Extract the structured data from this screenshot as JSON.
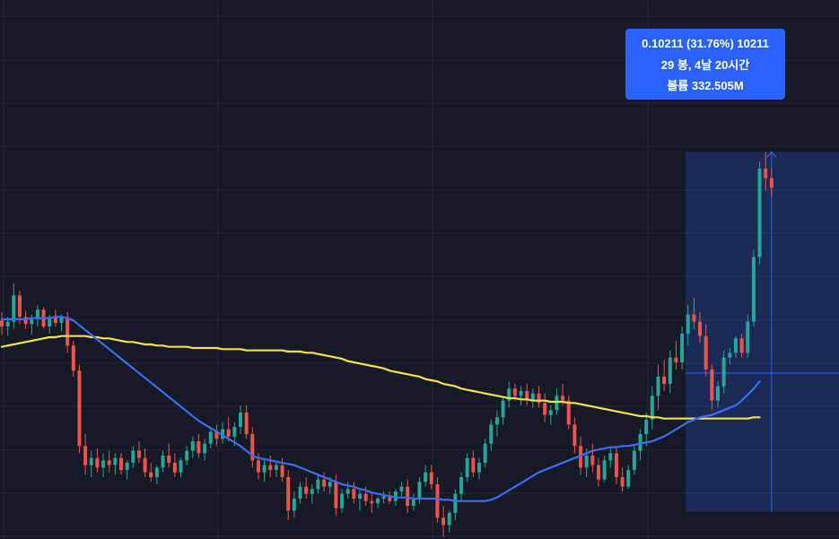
{
  "chart_data": {
    "type": "candlestick",
    "grid": true,
    "colors": {
      "background": "#161a25",
      "grid": "#232836",
      "up": "#26a69a",
      "down": "#ef5350",
      "ma_fast": "#3b6cf6",
      "ma_slow": "#f5e04d",
      "measure_fill": "#2962ff",
      "measure_line": "#2962ff"
    },
    "ylim": [
      0.215,
      0.545
    ],
    "candles": [
      [
        0.367,
        0.374,
        0.355,
        0.362
      ],
      [
        0.362,
        0.37,
        0.354,
        0.366
      ],
      [
        0.366,
        0.398,
        0.36,
        0.388
      ],
      [
        0.388,
        0.392,
        0.364,
        0.37
      ],
      [
        0.37,
        0.375,
        0.36,
        0.364
      ],
      [
        0.364,
        0.372,
        0.355,
        0.368
      ],
      [
        0.368,
        0.38,
        0.362,
        0.376
      ],
      [
        0.376,
        0.378,
        0.36,
        0.362
      ],
      [
        0.362,
        0.372,
        0.356,
        0.37
      ],
      [
        0.37,
        0.376,
        0.362,
        0.365
      ],
      [
        0.365,
        0.372,
        0.358,
        0.37
      ],
      [
        0.37,
        0.374,
        0.34,
        0.346
      ],
      [
        0.346,
        0.35,
        0.32,
        0.325
      ],
      [
        0.325,
        0.33,
        0.256,
        0.262
      ],
      [
        0.262,
        0.272,
        0.238,
        0.246
      ],
      [
        0.246,
        0.258,
        0.236,
        0.252
      ],
      [
        0.252,
        0.26,
        0.24,
        0.244
      ],
      [
        0.244,
        0.256,
        0.236,
        0.25
      ],
      [
        0.25,
        0.258,
        0.24,
        0.246
      ],
      [
        0.246,
        0.256,
        0.238,
        0.252
      ],
      [
        0.252,
        0.256,
        0.238,
        0.242
      ],
      [
        0.242,
        0.25,
        0.234,
        0.248
      ],
      [
        0.248,
        0.262,
        0.244,
        0.258
      ],
      [
        0.258,
        0.266,
        0.248,
        0.252
      ],
      [
        0.252,
        0.26,
        0.236,
        0.24
      ],
      [
        0.24,
        0.248,
        0.232,
        0.236
      ],
      [
        0.236,
        0.246,
        0.23,
        0.244
      ],
      [
        0.244,
        0.258,
        0.24,
        0.254
      ],
      [
        0.254,
        0.264,
        0.244,
        0.248
      ],
      [
        0.248,
        0.256,
        0.236,
        0.24
      ],
      [
        0.24,
        0.252,
        0.236,
        0.25
      ],
      [
        0.25,
        0.262,
        0.246,
        0.258
      ],
      [
        0.258,
        0.27,
        0.252,
        0.266
      ],
      [
        0.266,
        0.272,
        0.252,
        0.256
      ],
      [
        0.256,
        0.268,
        0.25,
        0.264
      ],
      [
        0.264,
        0.278,
        0.26,
        0.274
      ],
      [
        0.274,
        0.28,
        0.262,
        0.268
      ],
      [
        0.268,
        0.282,
        0.264,
        0.276
      ],
      [
        0.276,
        0.286,
        0.266,
        0.27
      ],
      [
        0.27,
        0.282,
        0.262,
        0.278
      ],
      [
        0.278,
        0.296,
        0.272,
        0.29
      ],
      [
        0.29,
        0.296,
        0.268,
        0.272
      ],
      [
        0.272,
        0.278,
        0.244,
        0.25
      ],
      [
        0.25,
        0.256,
        0.234,
        0.24
      ],
      [
        0.24,
        0.25,
        0.232,
        0.246
      ],
      [
        0.246,
        0.254,
        0.236,
        0.242
      ],
      [
        0.242,
        0.25,
        0.236,
        0.246
      ],
      [
        0.246,
        0.252,
        0.232,
        0.236
      ],
      [
        0.236,
        0.242,
        0.2,
        0.208
      ],
      [
        0.208,
        0.224,
        0.202,
        0.218
      ],
      [
        0.218,
        0.232,
        0.214,
        0.228
      ],
      [
        0.228,
        0.236,
        0.218,
        0.222
      ],
      [
        0.222,
        0.23,
        0.214,
        0.226
      ],
      [
        0.226,
        0.238,
        0.222,
        0.234
      ],
      [
        0.234,
        0.24,
        0.224,
        0.228
      ],
      [
        0.228,
        0.236,
        0.222,
        0.232
      ],
      [
        0.232,
        0.238,
        0.204,
        0.21
      ],
      [
        0.21,
        0.226,
        0.206,
        0.222
      ],
      [
        0.222,
        0.232,
        0.218,
        0.226
      ],
      [
        0.226,
        0.232,
        0.214,
        0.218
      ],
      [
        0.218,
        0.226,
        0.208,
        0.222
      ],
      [
        0.222,
        0.228,
        0.212,
        0.216
      ],
      [
        0.216,
        0.222,
        0.206,
        0.214
      ],
      [
        0.214,
        0.22,
        0.21,
        0.218
      ],
      [
        0.218,
        0.224,
        0.214,
        0.22
      ],
      [
        0.22,
        0.224,
        0.214,
        0.216
      ],
      [
        0.216,
        0.226,
        0.212,
        0.224
      ],
      [
        0.224,
        0.232,
        0.22,
        0.228
      ],
      [
        0.228,
        0.234,
        0.206,
        0.212
      ],
      [
        0.212,
        0.222,
        0.208,
        0.218
      ],
      [
        0.218,
        0.236,
        0.214,
        0.232
      ],
      [
        0.232,
        0.246,
        0.228,
        0.24
      ],
      [
        0.24,
        0.246,
        0.226,
        0.23
      ],
      [
        0.23,
        0.236,
        0.198,
        0.202
      ],
      [
        0.202,
        0.212,
        0.186,
        0.196
      ],
      [
        0.196,
        0.208,
        0.19,
        0.206
      ],
      [
        0.206,
        0.226,
        0.2,
        0.222
      ],
      [
        0.222,
        0.24,
        0.216,
        0.236
      ],
      [
        0.236,
        0.256,
        0.232,
        0.252
      ],
      [
        0.252,
        0.258,
        0.236,
        0.24
      ],
      [
        0.24,
        0.252,
        0.234,
        0.248
      ],
      [
        0.248,
        0.268,
        0.244,
        0.264
      ],
      [
        0.264,
        0.284,
        0.258,
        0.28
      ],
      [
        0.28,
        0.292,
        0.27,
        0.286
      ],
      [
        0.286,
        0.304,
        0.28,
        0.3
      ],
      [
        0.3,
        0.316,
        0.294,
        0.31
      ],
      [
        0.31,
        0.314,
        0.3,
        0.304
      ],
      [
        0.304,
        0.312,
        0.296,
        0.308
      ],
      [
        0.308,
        0.314,
        0.296,
        0.3
      ],
      [
        0.3,
        0.31,
        0.294,
        0.306
      ],
      [
        0.306,
        0.312,
        0.294,
        0.298
      ],
      [
        0.298,
        0.306,
        0.282,
        0.288
      ],
      [
        0.288,
        0.296,
        0.28,
        0.292
      ],
      [
        0.292,
        0.31,
        0.288,
        0.304
      ],
      [
        0.304,
        0.314,
        0.296,
        0.3
      ],
      [
        0.3,
        0.304,
        0.276,
        0.28
      ],
      [
        0.28,
        0.286,
        0.256,
        0.262
      ],
      [
        0.262,
        0.27,
        0.238,
        0.244
      ],
      [
        0.244,
        0.26,
        0.236,
        0.254
      ],
      [
        0.254,
        0.264,
        0.24,
        0.246
      ],
      [
        0.246,
        0.252,
        0.228,
        0.234
      ],
      [
        0.234,
        0.254,
        0.232,
        0.25
      ],
      [
        0.25,
        0.262,
        0.244,
        0.256
      ],
      [
        0.256,
        0.262,
        0.23,
        0.236
      ],
      [
        0.236,
        0.244,
        0.224,
        0.228
      ],
      [
        0.228,
        0.246,
        0.226,
        0.242
      ],
      [
        0.242,
        0.262,
        0.238,
        0.258
      ],
      [
        0.258,
        0.276,
        0.25,
        0.272
      ],
      [
        0.272,
        0.29,
        0.262,
        0.284
      ],
      [
        0.284,
        0.312,
        0.276,
        0.304
      ],
      [
        0.304,
        0.33,
        0.292,
        0.32
      ],
      [
        0.32,
        0.334,
        0.308,
        0.314
      ],
      [
        0.314,
        0.342,
        0.306,
        0.336
      ],
      [
        0.336,
        0.35,
        0.326,
        0.332
      ],
      [
        0.332,
        0.362,
        0.326,
        0.356
      ],
      [
        0.356,
        0.38,
        0.346,
        0.372
      ],
      [
        0.372,
        0.386,
        0.36,
        0.366
      ],
      [
        0.366,
        0.374,
        0.348,
        0.354
      ],
      [
        0.354,
        0.364,
        0.32,
        0.326
      ],
      [
        0.326,
        0.33,
        0.292,
        0.3
      ],
      [
        0.3,
        0.316,
        0.294,
        0.312
      ],
      [
        0.312,
        0.342,
        0.306,
        0.336
      ],
      [
        0.336,
        0.344,
        0.33,
        0.34
      ],
      [
        0.34,
        0.354,
        0.336,
        0.352
      ],
      [
        0.352,
        0.356,
        0.336,
        0.34
      ],
      [
        0.34,
        0.372,
        0.336,
        0.366
      ],
      [
        0.366,
        0.426,
        0.362,
        0.42
      ],
      [
        0.42,
        0.5,
        0.414,
        0.494
      ],
      [
        0.494,
        0.508,
        0.476,
        0.486
      ],
      [
        0.486,
        0.494,
        0.47,
        0.478
      ]
    ],
    "ma_fast": [
      0.368,
      0.368,
      0.368,
      0.368,
      0.368,
      0.369,
      0.369,
      0.369,
      0.369,
      0.37,
      0.37,
      0.369,
      0.367,
      0.363,
      0.359,
      0.355,
      0.351,
      0.347,
      0.343,
      0.339,
      0.335,
      0.331,
      0.327,
      0.323,
      0.319,
      0.315,
      0.311,
      0.307,
      0.303,
      0.299,
      0.295,
      0.291,
      0.287,
      0.283,
      0.28,
      0.277,
      0.274,
      0.271,
      0.268,
      0.265,
      0.262,
      0.258,
      0.254,
      0.252,
      0.251,
      0.25,
      0.249,
      0.248,
      0.247,
      0.246,
      0.244,
      0.242,
      0.24,
      0.238,
      0.236,
      0.234,
      0.232,
      0.23,
      0.229,
      0.228,
      0.226,
      0.225,
      0.223,
      0.222,
      0.221,
      0.22,
      0.219,
      0.219,
      0.219,
      0.218,
      0.218,
      0.218,
      0.218,
      0.218,
      0.217,
      0.217,
      0.216,
      0.216,
      0.216,
      0.216,
      0.216,
      0.216,
      0.217,
      0.219,
      0.222,
      0.225,
      0.228,
      0.231,
      0.234,
      0.237,
      0.24,
      0.242,
      0.244,
      0.246,
      0.248,
      0.25,
      0.252,
      0.254,
      0.256,
      0.258,
      0.259,
      0.26,
      0.261,
      0.261,
      0.262,
      0.262,
      0.263,
      0.264,
      0.265,
      0.266,
      0.268,
      0.27,
      0.273,
      0.276,
      0.279,
      0.282,
      0.284,
      0.286,
      0.287,
      0.288,
      0.29,
      0.292,
      0.294,
      0.296,
      0.3,
      0.305,
      0.31,
      0.316
    ],
    "ma_slow": [
      0.345,
      0.346,
      0.347,
      0.348,
      0.349,
      0.35,
      0.351,
      0.352,
      0.353,
      0.353,
      0.354,
      0.354,
      0.354,
      0.354,
      0.354,
      0.353,
      0.353,
      0.352,
      0.352,
      0.351,
      0.35,
      0.349,
      0.349,
      0.348,
      0.347,
      0.347,
      0.346,
      0.346,
      0.345,
      0.345,
      0.345,
      0.345,
      0.344,
      0.344,
      0.344,
      0.344,
      0.344,
      0.343,
      0.343,
      0.343,
      0.343,
      0.342,
      0.342,
      0.342,
      0.342,
      0.342,
      0.342,
      0.342,
      0.341,
      0.341,
      0.341,
      0.34,
      0.34,
      0.339,
      0.338,
      0.337,
      0.336,
      0.335,
      0.333,
      0.332,
      0.331,
      0.33,
      0.329,
      0.328,
      0.327,
      0.325,
      0.324,
      0.323,
      0.322,
      0.321,
      0.32,
      0.318,
      0.317,
      0.316,
      0.314,
      0.313,
      0.312,
      0.31,
      0.309,
      0.308,
      0.307,
      0.306,
      0.305,
      0.304,
      0.303,
      0.302,
      0.302,
      0.301,
      0.301,
      0.3,
      0.3,
      0.3,
      0.299,
      0.299,
      0.299,
      0.298,
      0.298,
      0.297,
      0.296,
      0.295,
      0.294,
      0.293,
      0.292,
      0.291,
      0.29,
      0.289,
      0.288,
      0.287,
      0.287,
      0.286,
      0.286,
      0.285,
      0.285,
      0.285,
      0.285,
      0.285,
      0.285,
      0.285,
      0.285,
      0.285,
      0.285,
      0.285,
      0.285,
      0.285,
      0.285,
      0.285,
      0.286,
      0.286
    ],
    "measure": {
      "start_index": 115,
      "end_index": 143,
      "low": 0.207,
      "high": 0.508,
      "level": 0.323
    },
    "tooltip": {
      "line1": "0.10211 (31.76%) 10211",
      "line2": "29 봉, 4날 20시간",
      "line3": "볼륨 332.505M"
    }
  }
}
